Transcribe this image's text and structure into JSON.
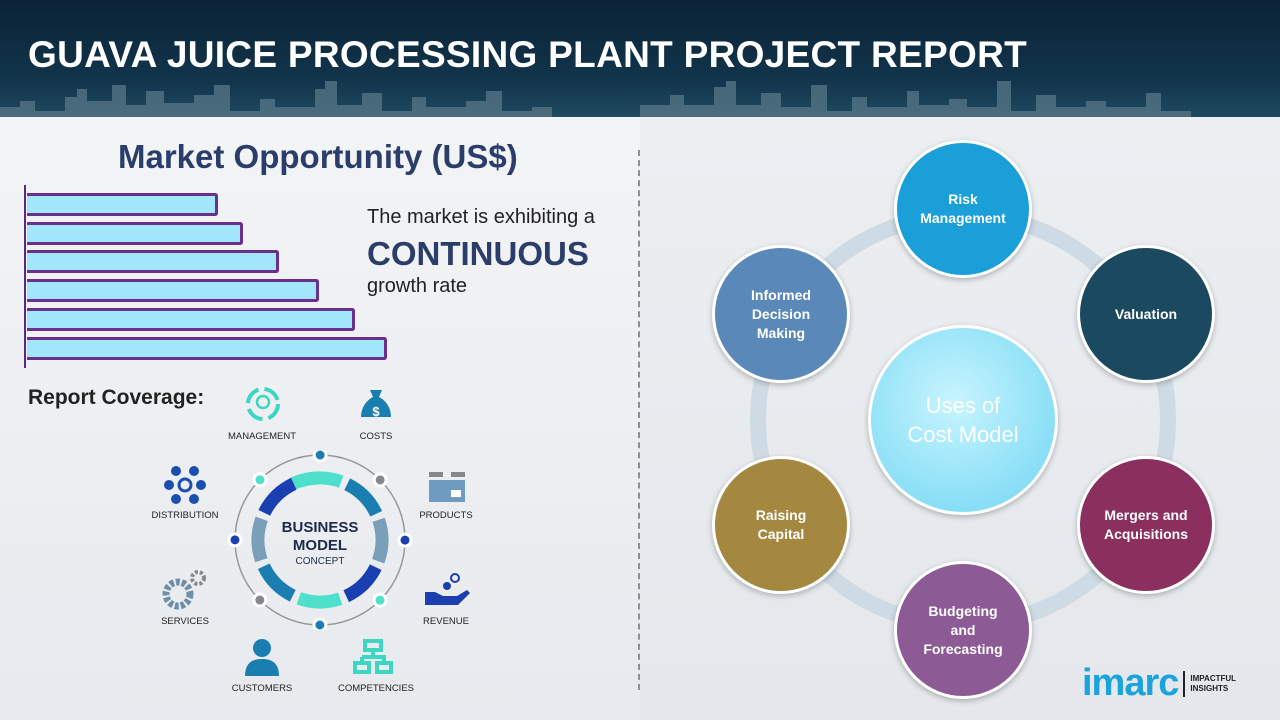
{
  "header": {
    "title": "GUAVA JUICE PROCESSING PLANT PROJECT REPORT"
  },
  "market": {
    "title": "Market Opportunity (US$)",
    "bar_levels": [
      0.53,
      0.6,
      0.7,
      0.81,
      0.91,
      1.0
    ],
    "text_line1": "The market is exhibiting a",
    "text_emphasis": "CONTINUOUS",
    "text_line2": "growth rate",
    "bar_fill": "#a2e6fb",
    "bar_border": "#6b2f8c"
  },
  "coverage": {
    "title": "Report Coverage:",
    "center_line1": "BUSINESS",
    "center_line2": "MODEL",
    "center_line3": "CONCEPT",
    "items": [
      "MANAGEMENT",
      "COSTS",
      "PRODUCTS",
      "REVENUE",
      "COMPETENCIES",
      "CUSTOMERS",
      "SERVICES",
      "DISTRIBUTION"
    ]
  },
  "uses": {
    "center_line1": "Uses of",
    "center_line2": "Cost Model",
    "items": [
      {
        "line1": "Risk",
        "line2": "Management",
        "line3": "",
        "color": "#1a9fd9"
      },
      {
        "line1": "Valuation",
        "line2": "",
        "line3": "",
        "color": "#1b4a60"
      },
      {
        "line1": "Mergers and",
        "line2": "Acquisitions",
        "line3": "",
        "color": "#8a2f5e"
      },
      {
        "line1": "Budgeting",
        "line2": "and",
        "line3": "Forecasting",
        "color": "#8c5a95"
      },
      {
        "line1": "Raising",
        "line2": "Capital",
        "line3": "",
        "color": "#a58840"
      },
      {
        "line1": "Informed",
        "line2": "Decision",
        "line3": "Making",
        "color": "#5a88b8"
      }
    ]
  },
  "logo": {
    "brand": "imarc",
    "tagline1": "IMPACTFUL",
    "tagline2": "INSIGHTS",
    "color": "#1aa3dc"
  }
}
